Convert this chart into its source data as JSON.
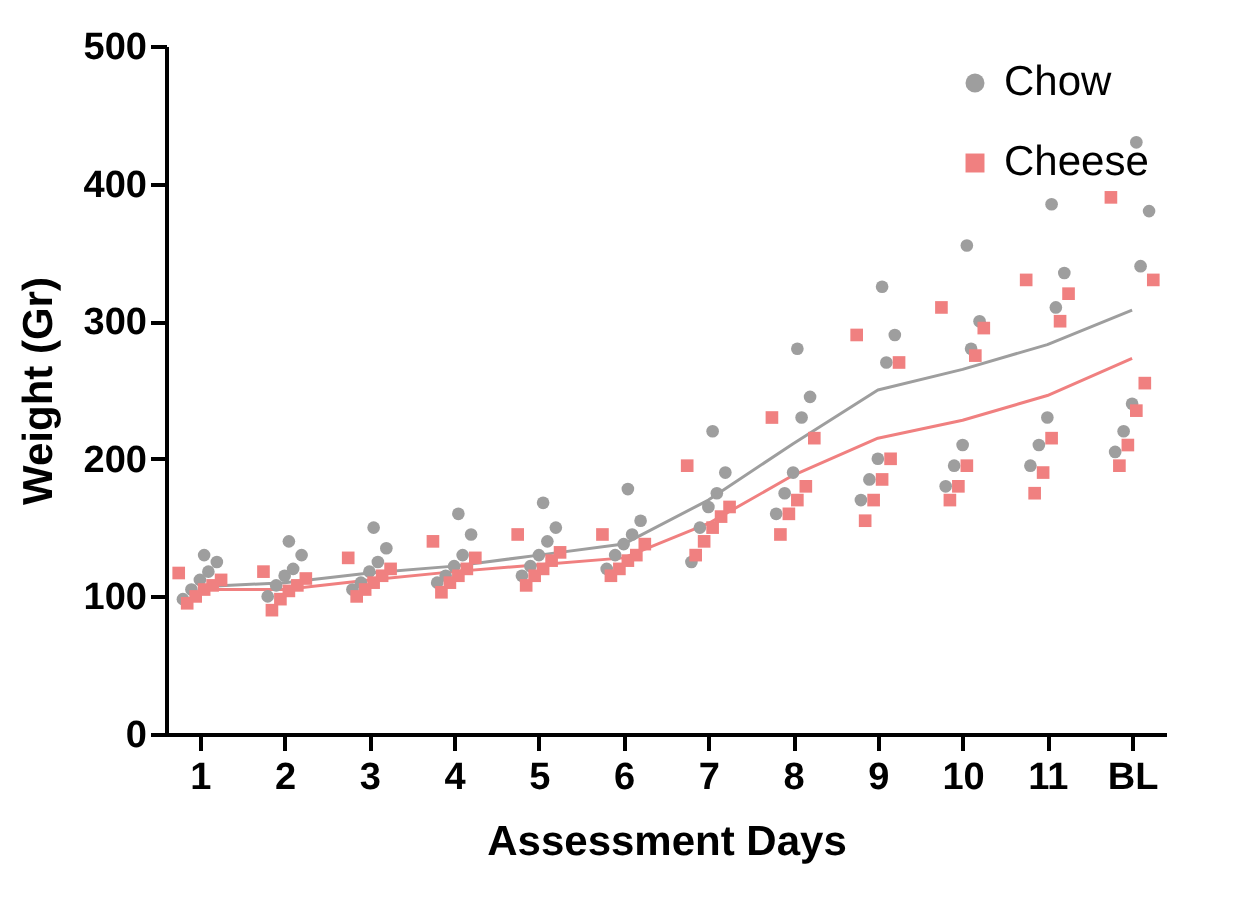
{
  "chart_data": {
    "type": "scatter",
    "xlabel": "Assessment Days",
    "ylabel": "Weight  (Gr)",
    "xlim": [
      0.6,
      12.4
    ],
    "xticks": [
      1,
      2,
      3,
      4,
      5,
      6,
      7,
      8,
      9,
      10,
      11,
      {
        "value": 12,
        "label": "BL"
      }
    ],
    "ylim": [
      0,
      500
    ],
    "yticks": [
      0,
      100,
      200,
      300,
      400,
      500
    ],
    "grid": false,
    "legend": "top right",
    "series": [
      {
        "name": "Chow",
        "color": "#9e9e9e",
        "marker": "circle",
        "x": [
          0.8,
          0.9,
          1,
          1.1,
          1.2,
          1.05,
          1.8,
          1.9,
          2,
          2.1,
          2.2,
          2.05,
          2.8,
          2.9,
          3,
          3.1,
          3.2,
          3.05,
          3.8,
          3.9,
          4,
          4.1,
          4.2,
          4.05,
          4.8,
          4.9,
          5,
          5.1,
          5.2,
          5.05,
          5.8,
          5.9,
          6,
          6.1,
          6.2,
          6.05,
          6.8,
          6.9,
          7,
          7.1,
          7.2,
          7.05,
          7.8,
          7.9,
          8,
          8.1,
          8.2,
          8.05,
          8.8,
          8.9,
          9,
          9.1,
          9.2,
          9.05,
          9.8,
          9.9,
          10,
          10.1,
          10.2,
          10.05,
          10.8,
          10.9,
          11,
          11.1,
          11.2,
          11.05,
          11.8,
          11.9,
          12,
          12.1,
          12.2,
          12.05
        ],
        "values": [
          98,
          105,
          112,
          118,
          125,
          130,
          100,
          108,
          115,
          120,
          130,
          140,
          105,
          110,
          118,
          125,
          135,
          150,
          110,
          115,
          122,
          130,
          145,
          160,
          115,
          122,
          130,
          140,
          150,
          168,
          120,
          130,
          138,
          145,
          155,
          178,
          125,
          150,
          165,
          175,
          190,
          220,
          160,
          175,
          190,
          230,
          245,
          280,
          170,
          185,
          200,
          270,
          290,
          325,
          180,
          195,
          210,
          280,
          300,
          355,
          195,
          210,
          230,
          310,
          335,
          385,
          205,
          220,
          240,
          340,
          380,
          430
        ]
      },
      {
        "name": "Cheese",
        "color": "#f08080",
        "marker": "square",
        "x": [
          0.85,
          0.95,
          1.05,
          1.15,
          1.25,
          0.75,
          1.85,
          1.95,
          2.05,
          2.15,
          2.25,
          1.75,
          2.85,
          2.95,
          3.05,
          3.15,
          3.25,
          2.75,
          3.85,
          3.95,
          4.05,
          4.15,
          4.25,
          3.75,
          4.85,
          4.95,
          5.05,
          5.15,
          5.25,
          4.75,
          5.85,
          5.95,
          6.05,
          6.15,
          6.25,
          5.75,
          6.85,
          6.95,
          7.05,
          7.15,
          7.25,
          6.75,
          7.85,
          7.95,
          8.05,
          8.15,
          8.25,
          7.75,
          8.85,
          8.95,
          9.05,
          9.15,
          9.25,
          8.75,
          9.85,
          9.95,
          10.05,
          10.15,
          10.25,
          9.75,
          10.85,
          10.95,
          11.05,
          11.15,
          11.25,
          10.75,
          11.85,
          11.95,
          12.05,
          12.15,
          12.25,
          11.75
        ],
        "values": [
          95,
          100,
          105,
          108,
          112,
          117,
          90,
          98,
          104,
          108,
          113,
          118,
          100,
          105,
          110,
          115,
          120,
          128,
          103,
          110,
          115,
          120,
          128,
          140,
          108,
          115,
          120,
          126,
          132,
          145,
          115,
          120,
          126,
          130,
          138,
          145,
          130,
          140,
          150,
          158,
          165,
          195,
          145,
          160,
          170,
          180,
          215,
          230,
          155,
          170,
          185,
          200,
          270,
          290,
          170,
          180,
          195,
          275,
          295,
          310,
          175,
          190,
          215,
          300,
          320,
          330,
          195,
          210,
          235,
          255,
          330,
          390
        ]
      },
      {
        "type": "line",
        "color": "#9e9e9e",
        "x": [
          1,
          2,
          3,
          4,
          5,
          6,
          7,
          8,
          9,
          10,
          11,
          12
        ],
        "values": [
          107,
          110,
          117,
          122,
          130,
          138,
          170,
          211,
          250,
          265,
          283,
          308
        ]
      },
      {
        "type": "line",
        "color": "#f08080",
        "x": [
          1,
          2,
          3,
          4,
          5,
          6,
          7,
          8,
          9,
          10,
          11,
          12
        ],
        "values": [
          105,
          105,
          112,
          118,
          123,
          128,
          153,
          188,
          215,
          228,
          246,
          273
        ]
      }
    ]
  }
}
